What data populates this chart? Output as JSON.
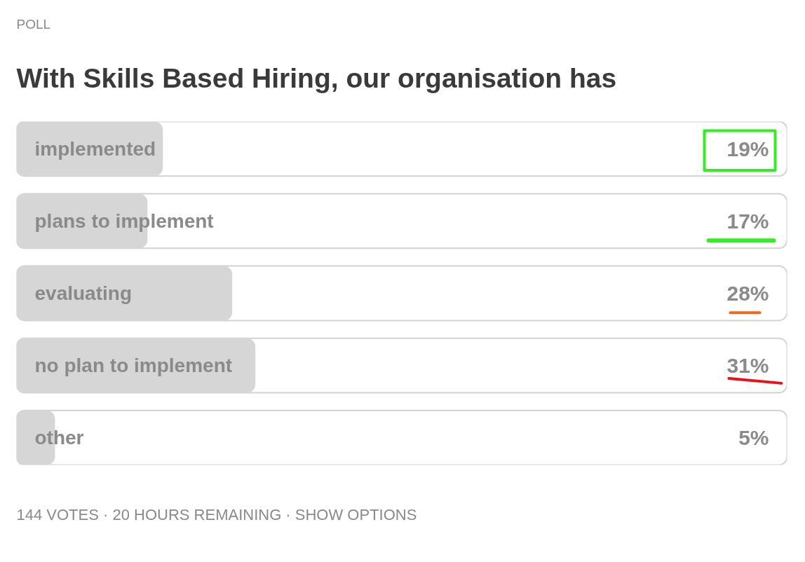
{
  "chart_data": {
    "type": "bar",
    "orientation": "horizontal",
    "title": "With Skills Based Hiring, our organisation has",
    "annotations": [
      "POLL",
      "144 VOTES · 20 HOURS REMAINING · SHOW OPTIONS"
    ],
    "categories": [
      "implemented",
      "plans to implement",
      "evaluating",
      "no plan to implement",
      "other"
    ],
    "values": [
      19,
      17,
      28,
      31,
      5
    ],
    "value_labels": [
      "19%",
      "17%",
      "28%",
      "31%",
      "5%"
    ],
    "color": "#d6d6d6",
    "xlim": [
      0,
      100
    ],
    "tick_labels": "y"
  }
}
